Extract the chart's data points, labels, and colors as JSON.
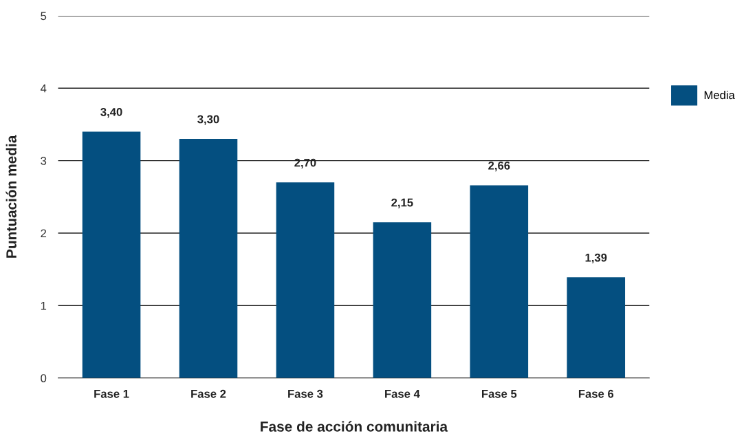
{
  "chart_data": {
    "type": "bar",
    "xlabel": "Fase de acción comunitaria",
    "ylabel": "Puntuación media",
    "categories": [
      "Fase 1",
      "Fase 2",
      "Fase 3",
      "Fase 4",
      "Fase 5",
      "Fase 6"
    ],
    "series": [
      {
        "name": "Media",
        "color": "#044f80",
        "values": [
          3.4,
          3.3,
          2.7,
          2.15,
          2.66,
          1.39
        ],
        "value_labels": [
          "3,40",
          "3,30",
          "2,70",
          "2,15",
          "2,66",
          "1,39"
        ]
      }
    ],
    "ylim": [
      0,
      5
    ],
    "yticks": [
      0,
      1,
      2,
      3,
      4,
      5
    ],
    "grid": "y",
    "legend": "right"
  }
}
